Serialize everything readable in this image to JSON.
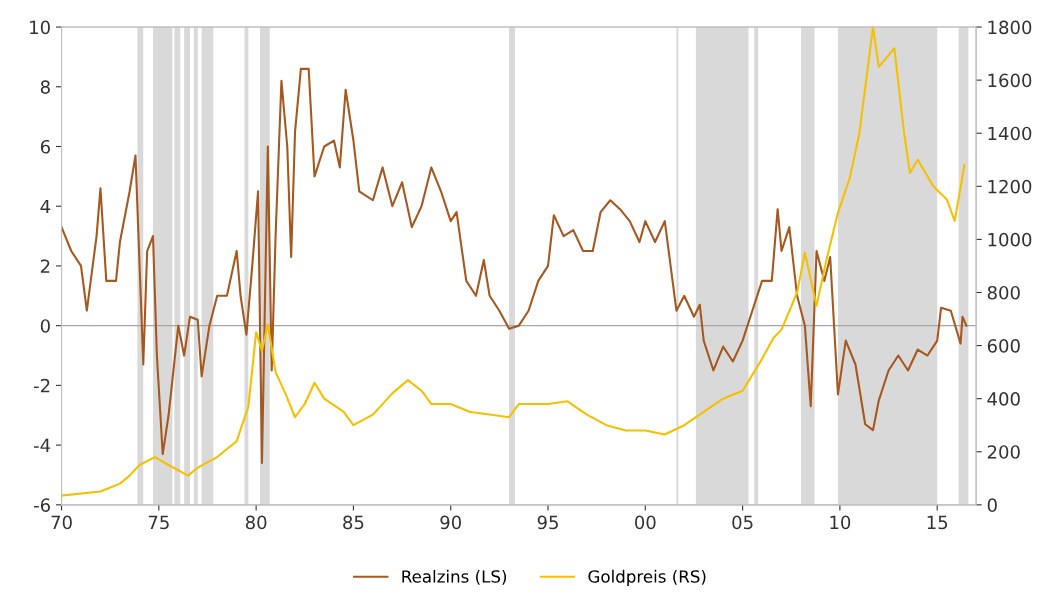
{
  "chart_data": {
    "type": "line",
    "xlim": [
      1970,
      2017
    ],
    "xticks": [
      {
        "value": 1970,
        "label": "70"
      },
      {
        "value": 1975,
        "label": "75"
      },
      {
        "value": 1980,
        "label": "80"
      },
      {
        "value": 1985,
        "label": "85"
      },
      {
        "value": 1990,
        "label": "90"
      },
      {
        "value": 1995,
        "label": "95"
      },
      {
        "value": 2000,
        "label": "00"
      },
      {
        "value": 2005,
        "label": "05"
      },
      {
        "value": 2010,
        "label": "10"
      },
      {
        "value": 2015,
        "label": "15"
      }
    ],
    "ylim": [
      -6,
      10
    ],
    "yticks": [
      -6,
      -4,
      -2,
      0,
      2,
      4,
      6,
      8,
      10
    ],
    "y2lim": [
      0,
      1800
    ],
    "y2ticks": [
      0,
      200,
      400,
      600,
      800,
      1000,
      1200,
      1400,
      1600,
      1800
    ],
    "grid": false,
    "legend": "bottom",
    "ref_lines": [
      {
        "axis": "y",
        "value": 0,
        "color": "#a6a6a6"
      }
    ],
    "bands": [
      {
        "axis": "x",
        "from": 1973.9,
        "to": 1974.2,
        "color": "#d9d9d9"
      },
      {
        "axis": "x",
        "from": 1974.7,
        "to": 1975.7,
        "color": "#d9d9d9"
      },
      {
        "axis": "x",
        "from": 1975.8,
        "to": 1976.1,
        "color": "#d9d9d9"
      },
      {
        "axis": "x",
        "from": 1976.3,
        "to": 1976.6,
        "color": "#d9d9d9"
      },
      {
        "axis": "x",
        "from": 1976.8,
        "to": 1977.0,
        "color": "#d9d9d9"
      },
      {
        "axis": "x",
        "from": 1977.2,
        "to": 1977.8,
        "color": "#d9d9d9"
      },
      {
        "axis": "x",
        "from": 1979.4,
        "to": 1979.6,
        "color": "#d9d9d9"
      },
      {
        "axis": "x",
        "from": 1980.2,
        "to": 1980.7,
        "color": "#d9d9d9"
      },
      {
        "axis": "x",
        "from": 1993.0,
        "to": 1993.3,
        "color": "#d9d9d9"
      },
      {
        "axis": "x",
        "from": 2001.6,
        "to": 2001.7,
        "color": "#d9d9d9"
      },
      {
        "axis": "x",
        "from": 2002.6,
        "to": 2005.3,
        "color": "#d9d9d9"
      },
      {
        "axis": "x",
        "from": 2005.6,
        "to": 2005.8,
        "color": "#d9d9d9"
      },
      {
        "axis": "x",
        "from": 2008.0,
        "to": 2008.7,
        "color": "#d9d9d9"
      },
      {
        "axis": "x",
        "from": 2009.9,
        "to": 2015.0,
        "color": "#d9d9d9"
      },
      {
        "axis": "x",
        "from": 2016.1,
        "to": 2016.6,
        "color": "#d9d9d9"
      }
    ],
    "series": [
      {
        "name": "Realzins (LS)",
        "color": "#a5581f",
        "x": [
          1970,
          1970.5,
          1971,
          1971.3,
          1971.8,
          1972,
          1972.3,
          1972.8,
          1973,
          1973.5,
          1973.8,
          1974.2,
          1974.4,
          1974.7,
          1974.9,
          1975.2,
          1975.5,
          1976,
          1976.3,
          1976.6,
          1977,
          1977.2,
          1977.6,
          1978,
          1978.5,
          1979,
          1979.2,
          1979.5,
          1979.8,
          1980.1,
          1980.3,
          1980.6,
          1980.8,
          1981,
          1981.3,
          1981.6,
          1981.8,
          1982,
          1982.3,
          1982.7,
          1983,
          1983.5,
          1984,
          1984.3,
          1984.6,
          1985,
          1985.3,
          1986,
          1986.5,
          1987,
          1987.5,
          1988,
          1988.5,
          1989,
          1989.5,
          1990,
          1990.3,
          1990.8,
          1991.3,
          1991.7,
          1992,
          1992.5,
          1993,
          1993.5,
          1994,
          1994.5,
          1995,
          1995.3,
          1995.8,
          1996.3,
          1996.8,
          1997.3,
          1997.7,
          1998.2,
          1998.7,
          1999.2,
          1999.7,
          2000,
          2000.5,
          2001,
          2001.3,
          2001.6,
          2002,
          2002.5,
          2002.8,
          2003,
          2003.5,
          2004,
          2004.5,
          2005,
          2005.5,
          2006,
          2006.5,
          2006.8,
          2007,
          2007.4,
          2007.8,
          2008.2,
          2008.5,
          2008.8,
          2009.2,
          2009.5,
          2009.9,
          2010.3,
          2010.8,
          2011.3,
          2011.7,
          2012,
          2012.5,
          2013,
          2013.5,
          2014,
          2014.5,
          2015,
          2015.2,
          2015.7,
          2016.2,
          2016.3,
          2016.5
        ],
        "values": [
          3.3,
          2.5,
          2.0,
          0.5,
          3.0,
          4.6,
          1.5,
          1.5,
          2.8,
          4.5,
          5.7,
          -1.3,
          2.5,
          3.0,
          -1.0,
          -4.3,
          -3.0,
          0.0,
          -1.0,
          0.3,
          0.2,
          -1.7,
          0.0,
          1.0,
          1.0,
          2.5,
          1.0,
          -0.3,
          2.0,
          4.5,
          -4.6,
          6.0,
          -1.5,
          3.0,
          8.2,
          6.0,
          2.3,
          6.5,
          8.6,
          8.6,
          5.0,
          6.0,
          6.2,
          5.3,
          7.9,
          6.2,
          4.5,
          4.2,
          5.3,
          4.0,
          4.8,
          3.3,
          4.0,
          5.3,
          4.5,
          3.5,
          3.8,
          1.5,
          1.0,
          2.2,
          1.0,
          0.5,
          -0.1,
          0.0,
          0.5,
          1.5,
          2.0,
          3.7,
          3.0,
          3.2,
          2.5,
          2.5,
          3.8,
          4.2,
          3.9,
          3.5,
          2.8,
          3.5,
          2.8,
          3.5,
          2.0,
          0.5,
          1.0,
          0.3,
          0.7,
          -0.5,
          -1.5,
          -0.7,
          -1.2,
          -0.5,
          0.5,
          1.5,
          1.5,
          3.9,
          2.5,
          3.3,
          1.0,
          0.0,
          -2.7,
          2.5,
          1.5,
          2.3,
          -2.3,
          -0.5,
          -1.3,
          -3.3,
          -3.5,
          -2.5,
          -1.5,
          -1.0,
          -1.5,
          -0.8,
          -1.0,
          -0.5,
          0.6,
          0.5,
          -0.6,
          0.3,
          0.0
        ]
      },
      {
        "name": "Goldpreis (RS)",
        "color": "#f5c000",
        "axis": "y2",
        "x": [
          1970,
          1972,
          1973,
          1973.5,
          1974,
          1974.8,
          1975.5,
          1976.5,
          1977,
          1978,
          1979,
          1979.6,
          1980,
          1980.3,
          1980.6,
          1981,
          1981.5,
          1982,
          1982.5,
          1983,
          1983.5,
          1984.5,
          1985,
          1986,
          1987,
          1987.8,
          1988.5,
          1989,
          1990,
          1991,
          1992,
          1993,
          1993.5,
          1994,
          1995,
          1996,
          1997,
          1998,
          1999,
          2000,
          2001,
          2002,
          2003,
          2004,
          2005,
          2006,
          2006.6,
          2007,
          2007.8,
          2008.2,
          2008.8,
          2009.3,
          2009.9,
          2010.5,
          2011,
          2011.7,
          2012,
          2012.8,
          2013.3,
          2013.6,
          2014,
          2014.8,
          2015.5,
          2015.9,
          2016.4
        ],
        "values": [
          35,
          50,
          80,
          110,
          150,
          180,
          150,
          110,
          140,
          180,
          240,
          370,
          650,
          580,
          680,
          500,
          420,
          330,
          380,
          460,
          400,
          350,
          300,
          340,
          420,
          470,
          430,
          380,
          380,
          350,
          340,
          330,
          380,
          380,
          380,
          390,
          340,
          300,
          280,
          280,
          265,
          300,
          350,
          400,
          430,
          550,
          630,
          660,
          800,
          950,
          750,
          920,
          1100,
          1230,
          1400,
          1800,
          1650,
          1720,
          1400,
          1250,
          1300,
          1200,
          1150,
          1070,
          1280
        ]
      }
    ]
  }
}
